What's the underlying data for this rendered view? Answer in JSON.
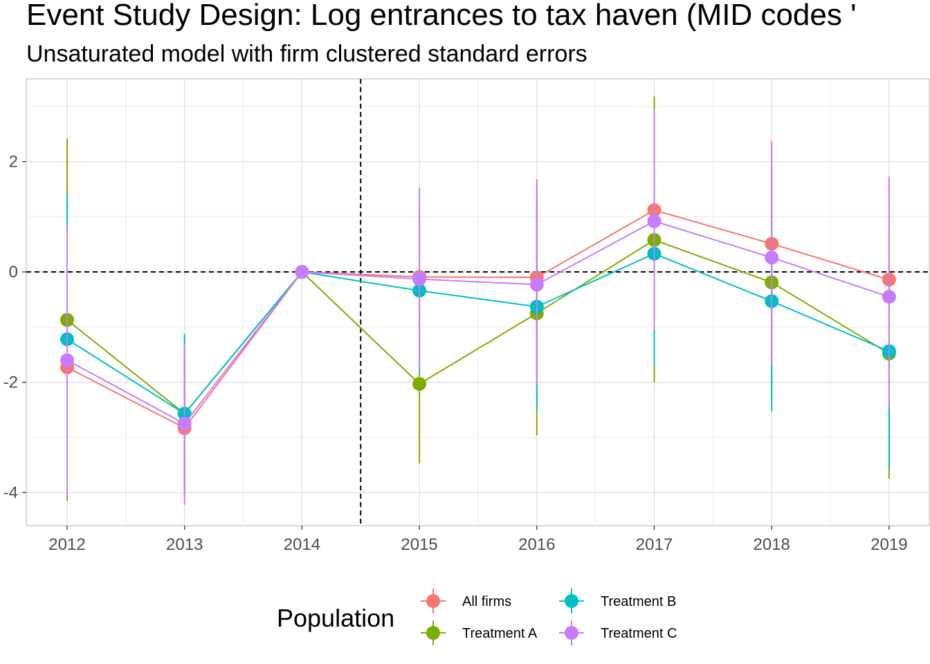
{
  "chart_data": {
    "type": "line",
    "title": "Event Study Design: Log entrances to tax haven (MID codes '",
    "subtitle": "Unsaturated model with firm clustered standard errors",
    "xlabel": "",
    "ylabel": "",
    "x": [
      "2012",
      "2013",
      "2014",
      "2015",
      "2016",
      "2017",
      "2018",
      "2019"
    ],
    "y_ticks": [
      -4,
      -2,
      0,
      2
    ],
    "ylim": [
      -4.6,
      3.5
    ],
    "vline_between": [
      "2014",
      "2015"
    ],
    "hline_at": 0,
    "grid": true,
    "legend": {
      "title": "Population",
      "position": "bottom"
    },
    "series": [
      {
        "name": "All firms",
        "color": "#F8766D",
        "values": [
          -1.73,
          -2.83,
          0.0,
          -0.09,
          -0.1,
          1.12,
          0.51,
          -0.14
        ],
        "lower": [
          -4.0,
          -4.1,
          0.0,
          -1.7,
          -1.9,
          -1.0,
          -1.3,
          -2.0
        ],
        "upper": [
          0.6,
          -1.5,
          0.0,
          1.5,
          1.68,
          3.0,
          2.37,
          1.73
        ]
      },
      {
        "name": "Treatment A",
        "color": "#7CAE00",
        "values": [
          -0.87,
          -2.57,
          0.0,
          -2.03,
          -0.75,
          0.58,
          -0.19,
          -1.48
        ],
        "lower": [
          -4.15,
          -3.9,
          0.0,
          -3.47,
          -2.96,
          -2.0,
          -2.3,
          -3.75
        ],
        "upper": [
          2.42,
          -1.2,
          0.0,
          -0.6,
          1.45,
          3.18,
          1.9,
          0.8
        ]
      },
      {
        "name": "Treatment B",
        "color": "#00BFC4",
        "values": [
          -1.22,
          -2.57,
          0.0,
          -0.34,
          -0.63,
          0.33,
          -0.53,
          -1.44
        ],
        "lower": [
          -3.8,
          -4.0,
          0.0,
          -1.8,
          -2.5,
          -1.7,
          -2.53,
          -3.55
        ],
        "upper": [
          1.4,
          -1.12,
          0.0,
          1.1,
          1.2,
          2.4,
          1.45,
          0.68
        ]
      },
      {
        "name": "Treatment C",
        "color": "#C77CFF",
        "values": [
          -1.6,
          -2.75,
          0.0,
          -0.13,
          -0.23,
          0.92,
          0.26,
          -0.45
        ],
        "lower": [
          -4.05,
          -4.22,
          0.0,
          -1.78,
          -2.05,
          -1.05,
          -1.68,
          -2.45
        ],
        "upper": [
          0.85,
          -1.3,
          0.0,
          1.52,
          1.6,
          2.95,
          2.3,
          1.6
        ]
      }
    ]
  }
}
